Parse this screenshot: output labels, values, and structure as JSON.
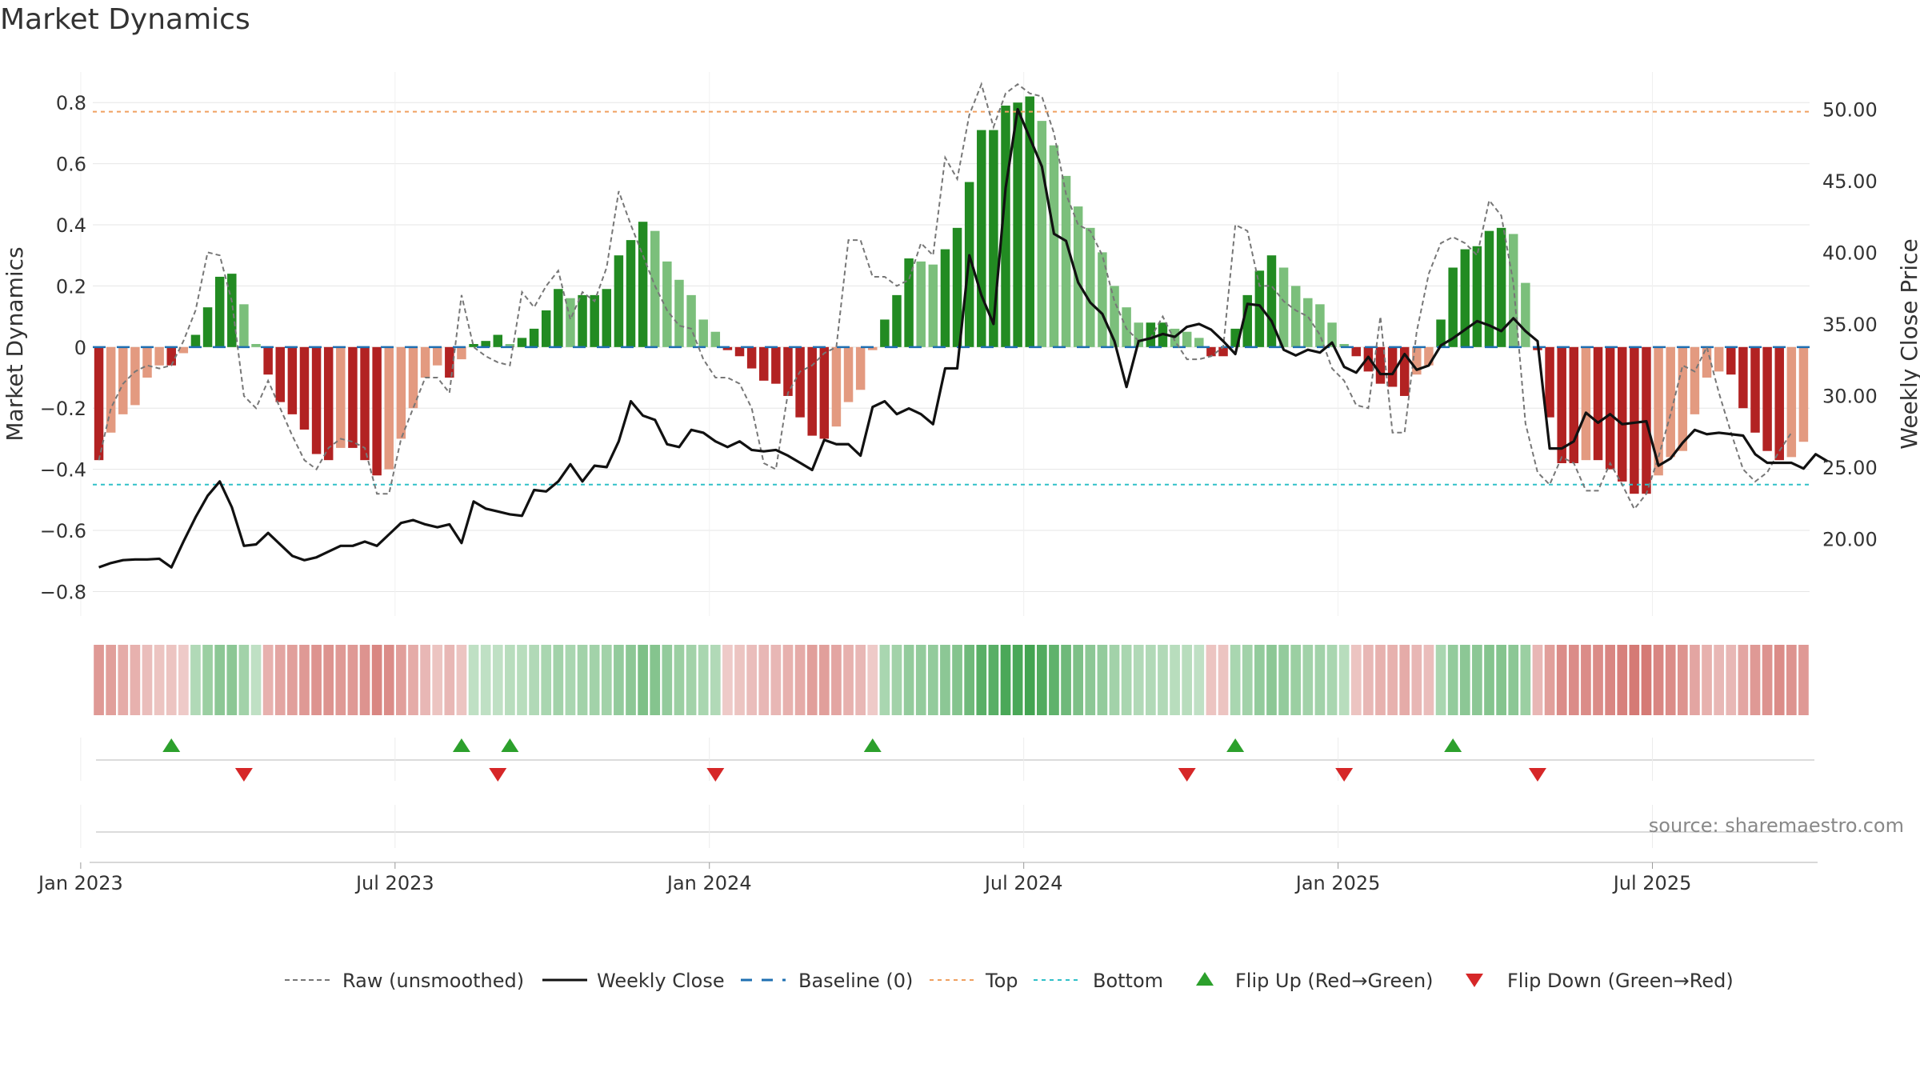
{
  "chart_data": {
    "title": "Market Dynamics",
    "type": "bar",
    "ylabel_left": "Market Dynamics",
    "ylabel_right": "Weekly Close Price",
    "ylim_left": [
      -0.88,
      0.9
    ],
    "ylim_right": [
      14.6,
      52.6
    ],
    "yticks_left": [
      "0.8",
      "0.6",
      "0.4",
      "0.2",
      "0",
      "−0.2",
      "−0.4",
      "−0.6",
      "−0.8"
    ],
    "yticks_left_values": [
      0.8,
      0.6,
      0.4,
      0.2,
      0,
      -0.2,
      -0.4,
      -0.6,
      -0.8
    ],
    "yticks_right": [
      "50.00",
      "45.00",
      "40.00",
      "35.00",
      "30.00",
      "25.00",
      "20.00"
    ],
    "yticks_right_values": [
      50,
      45,
      40,
      35,
      30,
      25,
      20
    ],
    "x_ticks": [
      "Jan 2023",
      "Jul 2023",
      "Jan 2024",
      "Jul 2024",
      "Jan 2025",
      "Jul 2025"
    ],
    "x_tick_weeks": [
      -1.5,
      24.5,
      50.5,
      76.5,
      102.5,
      128.5
    ],
    "reference_lines": {
      "top": 0.77,
      "bottom": -0.45,
      "baseline": 0
    },
    "colors": {
      "strong_green": "#228b22",
      "light_green": "#7bbf7b",
      "strong_red": "#b22222",
      "light_red": "#e39a80",
      "top_line": "#f0a060",
      "bottom_line": "#30c0c8",
      "baseline": "#1f6fb2",
      "close_line": "#111111",
      "raw_line": "#777777",
      "flip_up": "#2ca02c",
      "flip_down": "#d62728"
    },
    "weeks_start": "Jan 2023",
    "smoothed_values": [
      -0.37,
      -0.28,
      -0.22,
      -0.19,
      -0.1,
      -0.06,
      -0.06,
      -0.02,
      0.04,
      0.13,
      0.23,
      0.24,
      0.14,
      0.01,
      -0.09,
      -0.18,
      -0.22,
      -0.27,
      -0.35,
      -0.37,
      -0.33,
      -0.33,
      -0.37,
      -0.42,
      -0.4,
      -0.3,
      -0.2,
      -0.1,
      -0.06,
      -0.1,
      -0.04,
      0.01,
      0.02,
      0.04,
      0.01,
      0.03,
      0.06,
      0.12,
      0.19,
      0.16,
      0.17,
      0.17,
      0.19,
      0.3,
      0.35,
      0.41,
      0.38,
      0.28,
      0.22,
      0.17,
      0.09,
      0.05,
      -0.01,
      -0.03,
      -0.07,
      -0.11,
      -0.12,
      -0.16,
      -0.23,
      -0.29,
      -0.3,
      -0.26,
      -0.18,
      -0.14,
      -0.01,
      0.09,
      0.17,
      0.29,
      0.28,
      0.27,
      0.32,
      0.39,
      0.54,
      0.71,
      0.71,
      0.79,
      0.8,
      0.82,
      0.74,
      0.66,
      0.56,
      0.46,
      0.39,
      0.31,
      0.2,
      0.13,
      0.08,
      0.08,
      0.08,
      0.06,
      0.05,
      0.03,
      -0.03,
      -0.03,
      0.06,
      0.17,
      0.25,
      0.3,
      0.26,
      0.2,
      0.16,
      0.14,
      0.08,
      0.01,
      -0.03,
      -0.08,
      -0.12,
      -0.13,
      -0.16,
      -0.09,
      -0.06,
      0.09,
      0.26,
      0.32,
      0.33,
      0.38,
      0.39,
      0.37,
      0.21,
      -0.01,
      -0.23,
      -0.38,
      -0.38,
      -0.37,
      -0.37,
      -0.4,
      -0.44,
      -0.48,
      -0.48,
      -0.42,
      -0.36,
      -0.34,
      -0.22,
      -0.1,
      -0.08,
      -0.09,
      -0.2,
      -0.28,
      -0.34,
      -0.37,
      -0.36,
      -0.31
    ],
    "raw_values": [
      -0.37,
      -0.2,
      -0.12,
      -0.08,
      -0.06,
      -0.07,
      -0.06,
      0.02,
      0.12,
      0.31,
      0.3,
      0.15,
      -0.16,
      -0.2,
      -0.11,
      -0.2,
      -0.29,
      -0.37,
      -0.4,
      -0.33,
      -0.3,
      -0.31,
      -0.33,
      -0.48,
      -0.48,
      -0.3,
      -0.2,
      -0.1,
      -0.1,
      -0.15,
      0.17,
      0.0,
      -0.03,
      -0.05,
      -0.06,
      0.18,
      0.13,
      0.2,
      0.25,
      0.09,
      0.18,
      0.15,
      0.26,
      0.51,
      0.4,
      0.3,
      0.2,
      0.12,
      0.07,
      0.06,
      -0.04,
      -0.1,
      -0.1,
      -0.12,
      -0.2,
      -0.38,
      -0.4,
      -0.15,
      -0.08,
      -0.06,
      -0.02,
      0.0,
      0.35,
      0.35,
      0.23,
      0.23,
      0.2,
      0.22,
      0.34,
      0.3,
      0.62,
      0.55,
      0.76,
      0.86,
      0.72,
      0.83,
      0.86,
      0.83,
      0.82,
      0.7,
      0.5,
      0.4,
      0.38,
      0.3,
      0.15,
      0.06,
      0.02,
      0.03,
      0.1,
      0.02,
      -0.04,
      -0.04,
      -0.03,
      0.0,
      0.4,
      0.38,
      0.2,
      0.2,
      0.15,
      0.12,
      0.1,
      0.04,
      -0.07,
      -0.11,
      -0.19,
      -0.2,
      0.1,
      -0.28,
      -0.28,
      0.05,
      0.24,
      0.34,
      0.36,
      0.34,
      0.3,
      0.48,
      0.43,
      0.21,
      -0.25,
      -0.41,
      -0.45,
      -0.36,
      -0.38,
      -0.47,
      -0.47,
      -0.38,
      -0.45,
      -0.53,
      -0.48,
      -0.36,
      -0.22,
      -0.06,
      -0.08,
      0.0,
      -0.15,
      -0.28,
      -0.4,
      -0.44,
      -0.41,
      -0.34,
      -0.28
    ],
    "weekly_close": [
      18.0,
      18.3,
      18.5,
      18.55,
      18.55,
      18.6,
      18.0,
      19.8,
      21.5,
      23.0,
      24.0,
      22.2,
      19.5,
      19.6,
      20.4,
      19.6,
      18.8,
      18.5,
      18.7,
      19.1,
      19.5,
      19.5,
      19.8,
      19.5,
      20.3,
      21.1,
      21.3,
      21.0,
      20.8,
      21.0,
      19.7,
      22.6,
      22.1,
      21.9,
      21.7,
      21.6,
      23.4,
      23.3,
      24.0,
      25.2,
      24.0,
      25.1,
      25.0,
      26.8,
      29.6,
      28.6,
      28.3,
      26.6,
      26.4,
      27.6,
      27.4,
      26.8,
      26.4,
      26.8,
      26.2,
      26.1,
      26.2,
      25.8,
      25.3,
      24.8,
      26.9,
      26.6,
      26.6,
      25.8,
      29.2,
      29.6,
      28.7,
      29.1,
      28.7,
      28.0,
      31.9,
      31.9,
      39.8,
      37.0,
      35.0,
      44.5,
      50.0,
      48.0,
      46.0,
      41.3,
      40.8,
      37.9,
      36.5,
      35.7,
      33.8,
      30.6,
      33.8,
      34.0,
      34.3,
      34.1,
      34.8,
      35.0,
      34.6,
      33.8,
      32.9,
      36.4,
      36.3,
      35.2,
      33.2,
      32.8,
      33.2,
      33.0,
      33.7,
      32.0,
      31.6,
      32.7,
      31.5,
      31.5,
      32.9,
      31.8,
      32.1,
      33.5,
      34.0,
      34.6,
      35.2,
      34.9,
      34.5,
      35.4,
      34.5,
      33.8,
      26.3,
      26.3,
      26.8,
      28.8,
      28.1,
      28.7,
      28.0,
      28.1,
      28.2,
      25.1,
      25.6,
      26.7,
      27.6,
      27.3,
      27.4,
      27.3,
      27.2,
      25.9,
      25.3,
      25.3,
      25.3,
      24.9,
      25.9,
      25.4
    ],
    "heatmap_intensity": [
      0.55,
      0.5,
      0.4,
      0.35,
      0.25,
      0.2,
      0.2,
      0.15,
      0.25,
      0.4,
      0.5,
      0.5,
      0.35,
      0.15,
      0.35,
      0.45,
      0.5,
      0.55,
      0.6,
      0.6,
      0.55,
      0.55,
      0.6,
      0.7,
      0.65,
      0.5,
      0.4,
      0.3,
      0.2,
      0.3,
      0.2,
      0.15,
      0.15,
      0.15,
      0.2,
      0.2,
      0.25,
      0.3,
      0.35,
      0.3,
      0.35,
      0.35,
      0.35,
      0.45,
      0.5,
      0.6,
      0.55,
      0.45,
      0.4,
      0.35,
      0.3,
      0.25,
      0.15,
      0.2,
      0.25,
      0.3,
      0.3,
      0.35,
      0.4,
      0.5,
      0.5,
      0.45,
      0.35,
      0.3,
      0.15,
      0.3,
      0.35,
      0.45,
      0.45,
      0.45,
      0.5,
      0.55,
      0.7,
      0.85,
      0.85,
      0.95,
      0.95,
      1.0,
      0.9,
      0.8,
      0.7,
      0.6,
      0.5,
      0.45,
      0.35,
      0.3,
      0.25,
      0.25,
      0.25,
      0.2,
      0.2,
      0.15,
      0.2,
      0.2,
      0.3,
      0.35,
      0.45,
      0.5,
      0.45,
      0.4,
      0.35,
      0.35,
      0.3,
      0.2,
      0.2,
      0.3,
      0.35,
      0.35,
      0.4,
      0.3,
      0.25,
      0.3,
      0.45,
      0.5,
      0.5,
      0.55,
      0.55,
      0.5,
      0.4,
      0.3,
      0.5,
      0.65,
      0.65,
      0.65,
      0.65,
      0.7,
      0.75,
      0.8,
      0.8,
      0.7,
      0.65,
      0.6,
      0.45,
      0.35,
      0.3,
      0.3,
      0.45,
      0.55,
      0.6,
      0.65,
      0.6,
      0.55
    ],
    "flip_up_weeks": [
      6,
      30,
      34,
      64,
      94,
      112
    ],
    "flip_down_weeks": [
      12,
      33,
      51,
      90,
      103,
      119
    ],
    "legend": [
      {
        "label": "Raw (unsmoothed)",
        "kind": "raw"
      },
      {
        "label": "Weekly Close",
        "kind": "close"
      },
      {
        "label": "Baseline (0)",
        "kind": "baseline"
      },
      {
        "label": "Top",
        "kind": "top"
      },
      {
        "label": "Bottom",
        "kind": "bottom"
      },
      {
        "label": "Flip Up (Red→Green)",
        "kind": "up"
      },
      {
        "label": "Flip Down (Green→Red)",
        "kind": "down"
      }
    ],
    "source": "source: sharemaestro.com"
  }
}
